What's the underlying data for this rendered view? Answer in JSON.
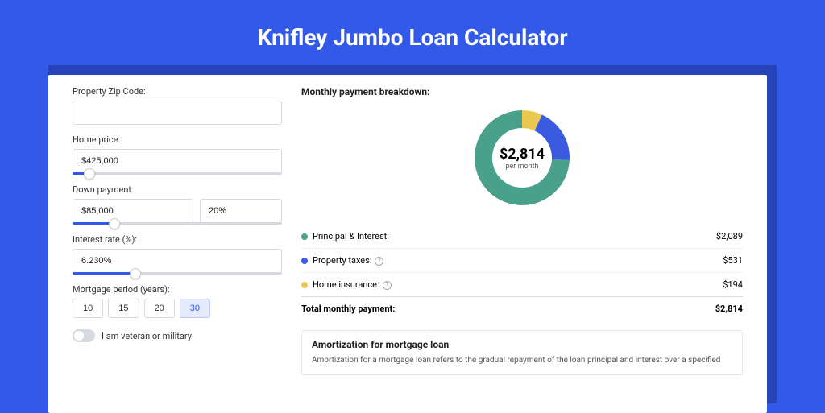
{
  "page": {
    "title": "Knifley Jumbo Loan Calculator",
    "background_color": "#3259e8",
    "inner_background_color": "#2743b5",
    "card_background": "#ffffff"
  },
  "form": {
    "zip": {
      "label": "Property Zip Code:",
      "value": ""
    },
    "home_price": {
      "label": "Home price:",
      "value": "$425,000",
      "slider_pct": 8
    },
    "down_payment": {
      "label": "Down payment:",
      "value": "$85,000",
      "percent": "20%",
      "slider_pct": 20
    },
    "interest_rate": {
      "label": "Interest rate (%):",
      "value": "6.230%",
      "slider_pct": 30
    },
    "period": {
      "label": "Mortgage period (years):",
      "options": [
        "10",
        "15",
        "20",
        "30"
      ],
      "selected": "30"
    },
    "veteran": {
      "label": "I am veteran or military",
      "checked": false
    }
  },
  "breakdown": {
    "heading": "Monthly payment breakdown:",
    "center_value": "$2,814",
    "center_sub": "per month",
    "donut": {
      "radius": 48,
      "stroke_width": 22,
      "slices": [
        {
          "label": "Principal & Interest:",
          "value": "$2,089",
          "color": "#4aa18b",
          "pct": 74.2
        },
        {
          "label": "Property taxes:",
          "value": "$531",
          "color": "#3a5be0",
          "pct": 18.9,
          "info": true
        },
        {
          "label": "Home insurance:",
          "value": "$194",
          "color": "#eac84f",
          "pct": 6.9,
          "info": true
        }
      ]
    },
    "total_label": "Total monthly payment:",
    "total_value": "$2,814"
  },
  "amortization": {
    "heading": "Amortization for mortgage loan",
    "text": "Amortization for a mortgage loan refers to the gradual repayment of the loan principal and interest over a specified"
  },
  "style": {
    "title_fontsize": 28,
    "label_fontsize": 11,
    "input_border": "#d6d9e0",
    "accent": "#3259e8"
  }
}
